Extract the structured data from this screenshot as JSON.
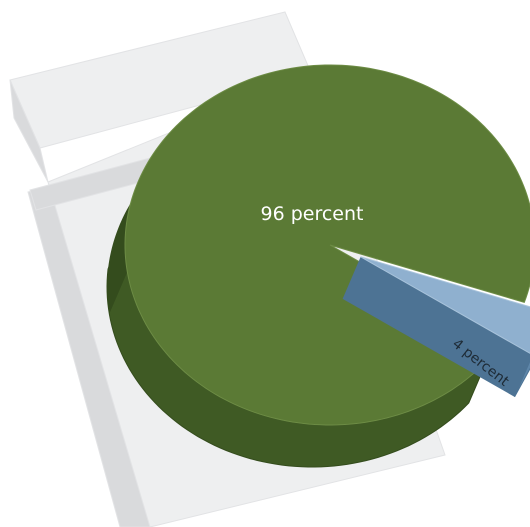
{
  "chart_data": {
    "type": "pie",
    "categories": [
      "96 percent",
      "4 percent"
    ],
    "values": [
      96,
      4
    ],
    "labels": [
      "96 percent",
      "4 percent"
    ],
    "title": "",
    "xlabel": "",
    "ylabel": "",
    "colors": {
      "main_top": "#5b7a35",
      "main_side": "#3f5a24",
      "main_side_dark": "#344c1d",
      "small_top": "#8fb0cf",
      "small_side": "#5f87aa",
      "small_side_dark": "#4d7394",
      "background_box": "#eeeff0",
      "background_box_edge": "#d9dadc"
    },
    "style": "3d-exploded-pie",
    "grid": false,
    "legend": "none"
  }
}
